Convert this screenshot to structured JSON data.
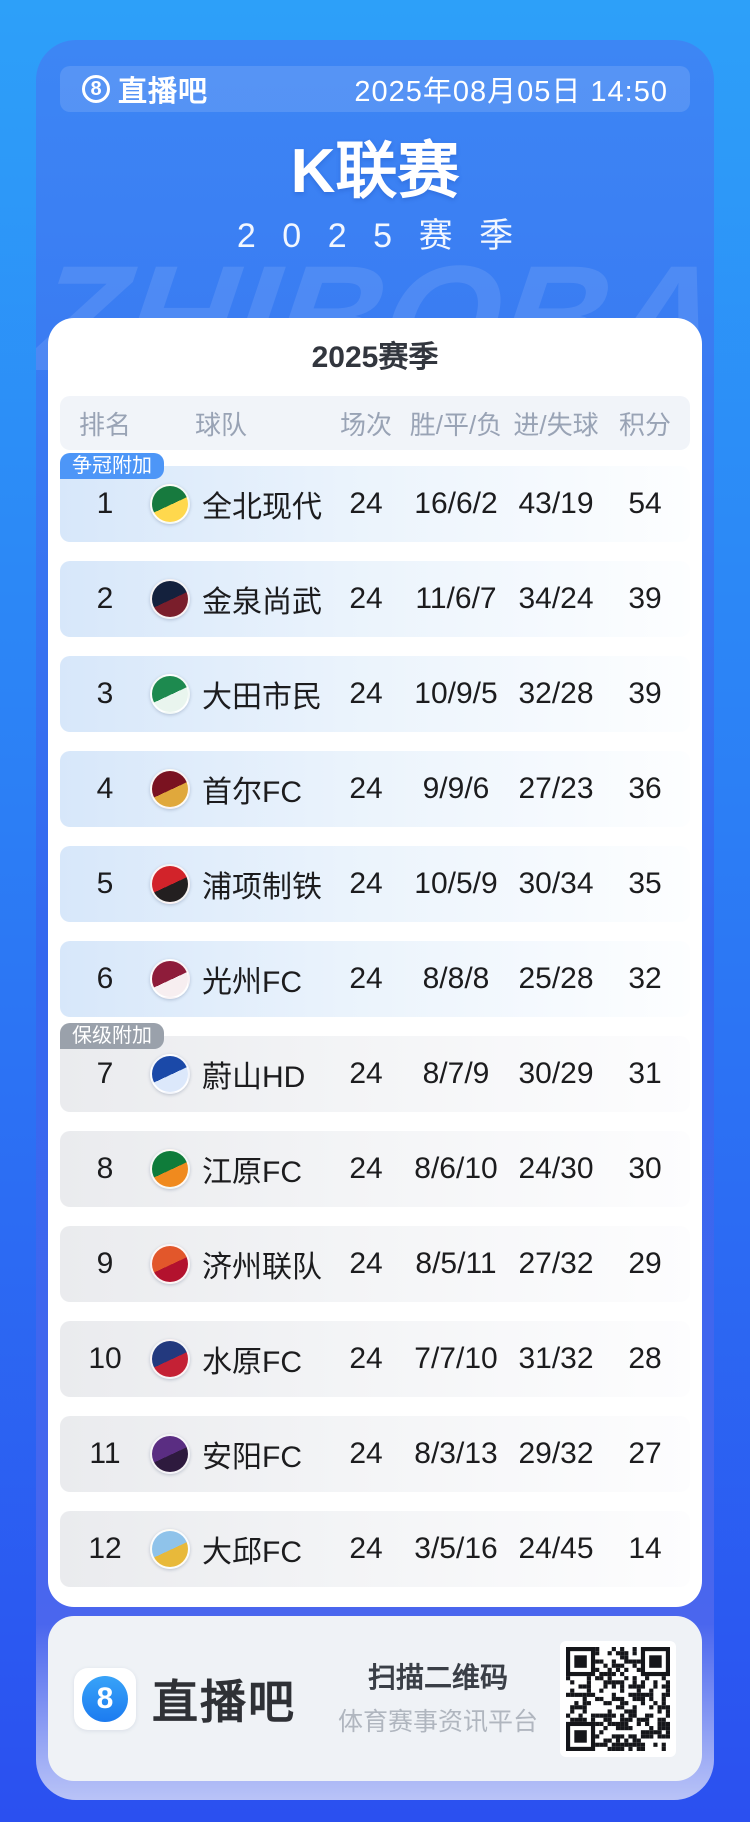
{
  "header": {
    "brand_icon": "8",
    "brand": "直播吧",
    "datetime": "2025年08月05日 14:50"
  },
  "hero": {
    "title": "K联赛",
    "season_display": "2025赛季",
    "watermark": "ZHIBOBA"
  },
  "table": {
    "title": "2025赛季",
    "columns": {
      "rank": "排名",
      "team": "球队",
      "played": "场次",
      "wdl": "胜/平/负",
      "goals": "进/失球",
      "points": "积分"
    },
    "badges": {
      "championship": "争冠附加",
      "relegation": "保级附加"
    },
    "rows": [
      {
        "rank": "1",
        "team": "全北现代",
        "played": "24",
        "wdl": "16/6/2",
        "goals": "43/19",
        "points": "54",
        "badge": "championship",
        "zone": "blue",
        "logo_colors": [
          "#177a3e",
          "#ffd84d"
        ]
      },
      {
        "rank": "2",
        "team": "金泉尚武",
        "played": "24",
        "wdl": "11/6/7",
        "goals": "34/24",
        "points": "39",
        "badge": "",
        "zone": "blue",
        "logo_colors": [
          "#14213d",
          "#7a1e2b"
        ]
      },
      {
        "rank": "3",
        "team": "大田市民",
        "played": "24",
        "wdl": "10/9/5",
        "goals": "32/28",
        "points": "39",
        "badge": "",
        "zone": "blue",
        "logo_colors": [
          "#1d8a4f",
          "#e9f5ee"
        ]
      },
      {
        "rank": "4",
        "team": "首尔FC",
        "played": "24",
        "wdl": "9/9/6",
        "goals": "27/23",
        "points": "36",
        "badge": "",
        "zone": "blue",
        "logo_colors": [
          "#7a1220",
          "#e0a83c"
        ]
      },
      {
        "rank": "5",
        "team": "浦项制铁",
        "played": "24",
        "wdl": "10/5/9",
        "goals": "30/34",
        "points": "35",
        "badge": "",
        "zone": "blue",
        "logo_colors": [
          "#d2232a",
          "#231f20"
        ]
      },
      {
        "rank": "6",
        "team": "光州FC",
        "played": "24",
        "wdl": "8/8/8",
        "goals": "25/28",
        "points": "32",
        "badge": "",
        "zone": "blue",
        "logo_colors": [
          "#8e1c3a",
          "#f7eef0"
        ]
      },
      {
        "rank": "7",
        "team": "蔚山HD",
        "played": "24",
        "wdl": "8/7/9",
        "goals": "30/29",
        "points": "31",
        "badge": "relegation",
        "zone": "gray",
        "logo_colors": [
          "#1b49a8",
          "#dce8fb"
        ]
      },
      {
        "rank": "8",
        "team": "江原FC",
        "played": "24",
        "wdl": "8/6/10",
        "goals": "24/30",
        "points": "30",
        "badge": "",
        "zone": "gray",
        "logo_colors": [
          "#0f7c3a",
          "#f08a1e"
        ]
      },
      {
        "rank": "9",
        "team": "济州联队",
        "played": "24",
        "wdl": "8/5/11",
        "goals": "27/32",
        "points": "29",
        "badge": "",
        "zone": "gray",
        "logo_colors": [
          "#e2572b",
          "#b3122e"
        ]
      },
      {
        "rank": "10",
        "team": "水原FC",
        "played": "24",
        "wdl": "7/7/10",
        "goals": "31/32",
        "points": "28",
        "badge": "",
        "zone": "gray",
        "logo_colors": [
          "#23397e",
          "#c42135"
        ]
      },
      {
        "rank": "11",
        "team": "安阳FC",
        "played": "24",
        "wdl": "8/3/13",
        "goals": "29/32",
        "points": "27",
        "badge": "",
        "zone": "gray",
        "logo_colors": [
          "#5a2d82",
          "#2e1a3e"
        ]
      },
      {
        "rank": "12",
        "team": "大邱FC",
        "played": "24",
        "wdl": "3/5/16",
        "goals": "24/45",
        "points": "14",
        "badge": "",
        "zone": "gray",
        "logo_colors": [
          "#8fc3ea",
          "#e8b93a"
        ]
      }
    ]
  },
  "footer": {
    "brand_icon": "8",
    "brand": "直播吧",
    "scan_title": "扫描二维码",
    "scan_subtitle": "体育赛事资讯平台"
  },
  "colors": {
    "accent_blue": "#2e7ef4",
    "badge_championship": "#4d96f7",
    "badge_relegation": "#9aa1ab",
    "zone_blue_row": "#d7e7fa",
    "zone_gray_row": "#eaebee"
  }
}
